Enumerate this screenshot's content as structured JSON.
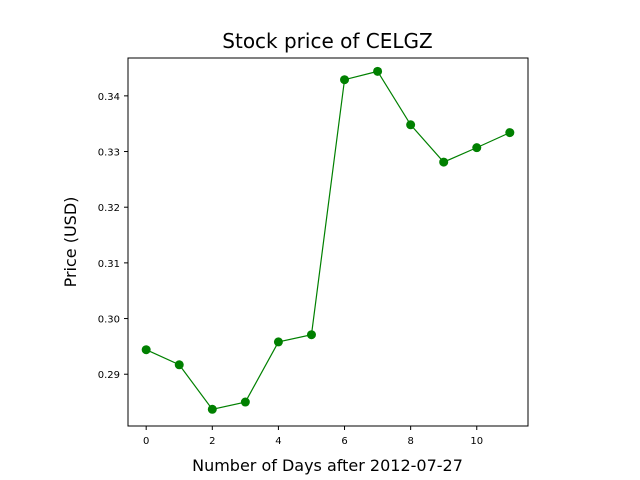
{
  "chart_data": {
    "type": "line",
    "title": "Stock price of CELGZ",
    "xlabel": "Number of Days after 2012-07-27",
    "ylabel": "Price (USD)",
    "xlim": [
      -0.55,
      11.55
    ],
    "ylim": [
      0.2807,
      0.3468
    ],
    "xticks": [
      0,
      2,
      4,
      6,
      8,
      10
    ],
    "yticks": [
      0.29,
      0.3,
      0.31,
      0.32,
      0.33,
      0.34
    ],
    "ytick_labels": [
      "0.29",
      "0.30",
      "0.31",
      "0.32",
      "0.33",
      "0.34"
    ],
    "grid": false,
    "color": "#008000",
    "series": [
      {
        "x": [
          0,
          1,
          2,
          3,
          4,
          5,
          6,
          7,
          8,
          9,
          10,
          11
        ],
        "values": [
          0.2944,
          0.2917,
          0.2837,
          0.285,
          0.2958,
          0.2971,
          0.3429,
          0.3444,
          0.3348,
          0.3281,
          0.3307,
          0.3334
        ]
      }
    ]
  }
}
